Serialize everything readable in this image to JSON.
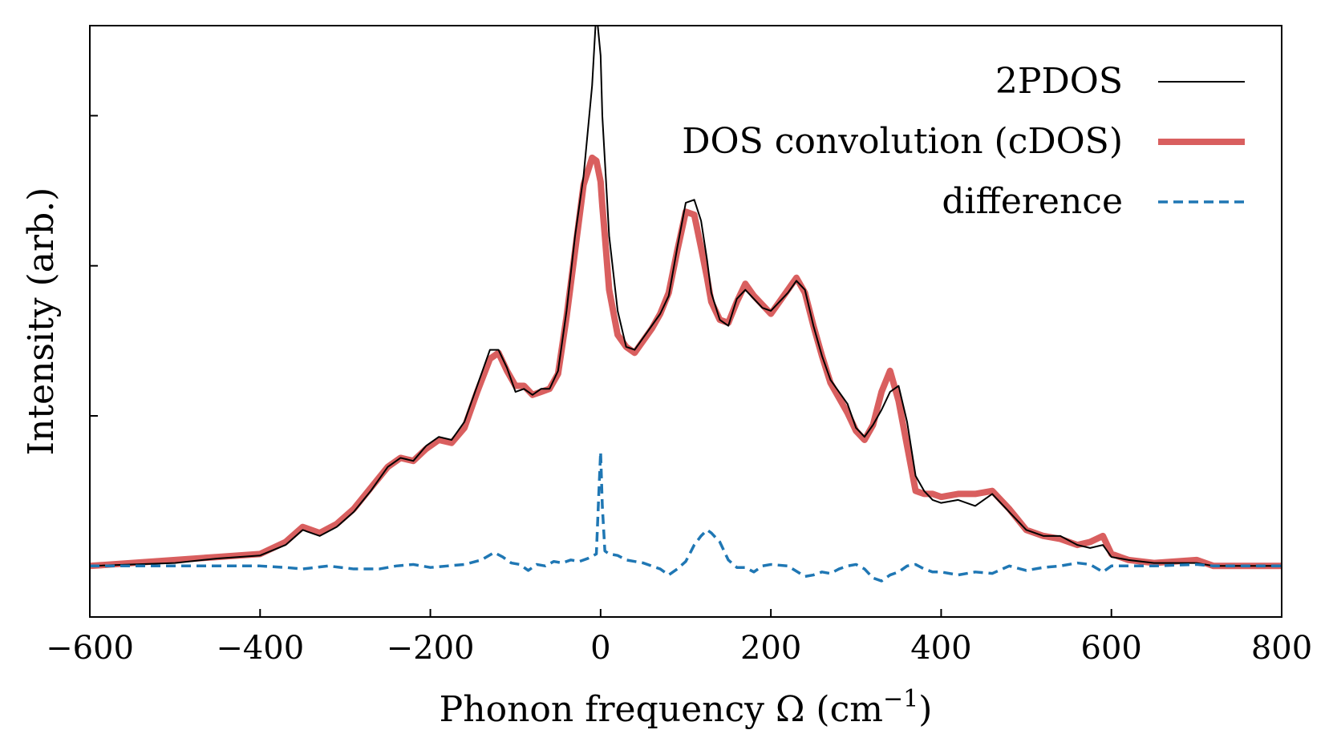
{
  "chart_data": {
    "type": "line",
    "title": "",
    "xlabel": "Phonon frequency Ω (cm",
    "xlabel_superscript": "−1",
    "xlabel_suffix": ")",
    "ylabel": "Intensity (arb.)",
    "xlim": [
      -600,
      800
    ],
    "ylim": [
      -0.17,
      1.8
    ],
    "x_ticks": [
      -600,
      -400,
      -200,
      0,
      200,
      400,
      600,
      800
    ],
    "x_tick_labels": [
      "−600",
      "−400",
      "−200",
      "0",
      "200",
      "400",
      "600",
      "800"
    ],
    "y_ticks": [
      0.5,
      1.0,
      1.5
    ],
    "y_tick_labels_visible": false,
    "grid": false,
    "legend_position": "top-right",
    "series": [
      {
        "name": "2PDOS",
        "color": "#000000",
        "style": "solid-thin",
        "x": [
          -600,
          -500,
          -450,
          -400,
          -370,
          -350,
          -330,
          -310,
          -290,
          -270,
          -250,
          -235,
          -220,
          -205,
          -190,
          -175,
          -160,
          -145,
          -130,
          -120,
          -110,
          -100,
          -90,
          -80,
          -70,
          -60,
          -50,
          -40,
          -30,
          -20,
          -10,
          -5,
          0,
          2,
          5,
          10,
          20,
          30,
          40,
          50,
          60,
          70,
          80,
          90,
          100,
          110,
          118,
          125,
          130,
          140,
          150,
          160,
          170,
          180,
          190,
          200,
          210,
          220,
          230,
          240,
          250,
          260,
          270,
          280,
          290,
          300,
          310,
          320,
          330,
          340,
          350,
          360,
          370,
          380,
          390,
          400,
          420,
          440,
          460,
          480,
          500,
          520,
          540,
          560,
          575,
          590,
          600,
          620,
          650,
          700,
          720,
          800
        ],
        "y": [
          0.0,
          0.01,
          0.025,
          0.035,
          0.07,
          0.12,
          0.1,
          0.13,
          0.18,
          0.25,
          0.33,
          0.36,
          0.35,
          0.4,
          0.43,
          0.42,
          0.48,
          0.6,
          0.72,
          0.72,
          0.66,
          0.58,
          0.59,
          0.57,
          0.59,
          0.59,
          0.65,
          0.85,
          1.1,
          1.3,
          1.6,
          1.85,
          1.7,
          1.5,
          1.35,
          1.1,
          0.85,
          0.73,
          0.72,
          0.76,
          0.8,
          0.84,
          0.9,
          1.06,
          1.21,
          1.22,
          1.15,
          1.02,
          0.91,
          0.82,
          0.8,
          0.89,
          0.92,
          0.89,
          0.86,
          0.85,
          0.88,
          0.91,
          0.95,
          0.92,
          0.8,
          0.7,
          0.62,
          0.58,
          0.54,
          0.46,
          0.43,
          0.47,
          0.52,
          0.58,
          0.6,
          0.48,
          0.3,
          0.25,
          0.22,
          0.21,
          0.22,
          0.2,
          0.24,
          0.18,
          0.12,
          0.1,
          0.1,
          0.07,
          0.06,
          0.07,
          0.03,
          0.02,
          0.01,
          0.01,
          0.0,
          0.0
        ]
      },
      {
        "name": "DOS convolution (cDOS)",
        "color": "#d95f5f",
        "style": "solid-thick",
        "x": [
          -600,
          -500,
          -450,
          -400,
          -370,
          -350,
          -330,
          -310,
          -290,
          -270,
          -250,
          -235,
          -220,
          -205,
          -190,
          -175,
          -160,
          -145,
          -130,
          -120,
          -110,
          -100,
          -90,
          -80,
          -70,
          -60,
          -50,
          -40,
          -30,
          -20,
          -10,
          -5,
          0,
          2,
          5,
          10,
          20,
          30,
          40,
          50,
          60,
          70,
          80,
          90,
          100,
          110,
          118,
          125,
          130,
          140,
          150,
          160,
          170,
          180,
          190,
          200,
          210,
          220,
          230,
          240,
          250,
          260,
          270,
          280,
          290,
          300,
          310,
          320,
          330,
          340,
          350,
          360,
          370,
          380,
          390,
          400,
          420,
          440,
          460,
          480,
          500,
          520,
          540,
          560,
          575,
          590,
          600,
          620,
          650,
          700,
          720,
          800
        ],
        "y": [
          0.0,
          0.02,
          0.03,
          0.04,
          0.08,
          0.13,
          0.11,
          0.14,
          0.19,
          0.26,
          0.33,
          0.36,
          0.35,
          0.39,
          0.42,
          0.41,
          0.46,
          0.58,
          0.69,
          0.71,
          0.65,
          0.6,
          0.6,
          0.57,
          0.58,
          0.59,
          0.64,
          0.83,
          1.05,
          1.27,
          1.36,
          1.35,
          1.28,
          1.2,
          1.1,
          0.92,
          0.77,
          0.73,
          0.71,
          0.75,
          0.79,
          0.84,
          0.91,
          1.05,
          1.18,
          1.17,
          1.06,
          0.96,
          0.88,
          0.82,
          0.81,
          0.88,
          0.94,
          0.9,
          0.87,
          0.84,
          0.88,
          0.92,
          0.96,
          0.91,
          0.8,
          0.7,
          0.61,
          0.56,
          0.51,
          0.45,
          0.42,
          0.47,
          0.58,
          0.65,
          0.55,
          0.4,
          0.25,
          0.24,
          0.24,
          0.23,
          0.24,
          0.24,
          0.25,
          0.19,
          0.12,
          0.1,
          0.09,
          0.07,
          0.08,
          0.1,
          0.04,
          0.02,
          0.01,
          0.02,
          0.0,
          0.0
        ]
      },
      {
        "name": "difference",
        "color": "#1f77b4",
        "style": "dashed",
        "x": [
          -600,
          -500,
          -400,
          -370,
          -350,
          -320,
          -290,
          -260,
          -240,
          -220,
          -200,
          -180,
          -160,
          -140,
          -125,
          -115,
          -105,
          -95,
          -85,
          -75,
          -65,
          -55,
          -45,
          -35,
          -25,
          -15,
          -5,
          -2,
          0,
          2,
          5,
          10,
          20,
          30,
          40,
          50,
          60,
          70,
          80,
          90,
          100,
          110,
          118,
          125,
          130,
          140,
          150,
          160,
          170,
          180,
          190,
          200,
          220,
          240,
          250,
          260,
          270,
          280,
          290,
          300,
          310,
          320,
          330,
          340,
          350,
          360,
          370,
          380,
          390,
          400,
          420,
          440,
          460,
          480,
          500,
          520,
          540,
          560,
          575,
          590,
          600,
          650,
          700,
          720,
          800
        ],
        "y": [
          0.0,
          0.0,
          0.0,
          -0.005,
          -0.01,
          0.0,
          -0.01,
          -0.01,
          0.0,
          0.005,
          -0.005,
          0.0,
          0.005,
          0.02,
          0.045,
          0.03,
          0.01,
          0.005,
          -0.015,
          0.005,
          0.0,
          0.015,
          0.01,
          0.02,
          0.015,
          0.025,
          0.04,
          0.25,
          0.38,
          0.2,
          0.05,
          0.04,
          0.035,
          0.02,
          0.015,
          0.01,
          0.0,
          -0.01,
          -0.03,
          -0.01,
          0.015,
          0.07,
          0.1,
          0.12,
          0.11,
          0.08,
          0.02,
          -0.005,
          -0.005,
          -0.02,
          0.0,
          0.005,
          0.0,
          -0.035,
          -0.03,
          -0.02,
          -0.025,
          -0.01,
          0.0,
          0.005,
          -0.01,
          -0.04,
          -0.05,
          -0.03,
          -0.02,
          0.0,
          0.005,
          -0.01,
          -0.02,
          -0.02,
          -0.03,
          -0.02,
          -0.025,
          0.0,
          -0.015,
          -0.005,
          0.0,
          0.01,
          0.005,
          -0.02,
          0.0,
          0.0,
          0.005,
          0.0,
          0.0
        ]
      }
    ]
  }
}
